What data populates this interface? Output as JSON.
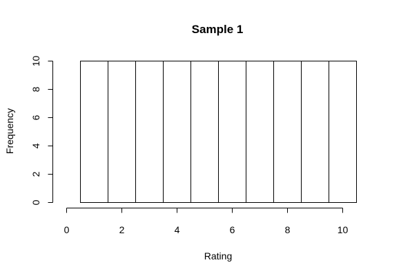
{
  "chart_data": {
    "type": "bar",
    "title": "Sample 1",
    "xlabel": "Rating",
    "ylabel": "Frequency",
    "bins": [
      {
        "start": 0.5,
        "end": 1.5,
        "value": 10
      },
      {
        "start": 1.5,
        "end": 2.5,
        "value": 10
      },
      {
        "start": 2.5,
        "end": 3.5,
        "value": 10
      },
      {
        "start": 3.5,
        "end": 4.5,
        "value": 10
      },
      {
        "start": 4.5,
        "end": 5.5,
        "value": 10
      },
      {
        "start": 5.5,
        "end": 6.5,
        "value": 10
      },
      {
        "start": 6.5,
        "end": 7.5,
        "value": 10
      },
      {
        "start": 7.5,
        "end": 8.5,
        "value": 10
      },
      {
        "start": 8.5,
        "end": 9.5,
        "value": 10
      },
      {
        "start": 9.5,
        "end": 10.5,
        "value": 10
      }
    ],
    "xlim": [
      0,
      10
    ],
    "ylim": [
      0,
      10
    ],
    "x_ticks": [
      0,
      2,
      4,
      6,
      8,
      10
    ],
    "y_ticks": [
      0,
      2,
      4,
      6,
      8,
      10
    ],
    "grid": false,
    "bar_fill": "#ffffff",
    "bar_stroke": "#000000"
  }
}
